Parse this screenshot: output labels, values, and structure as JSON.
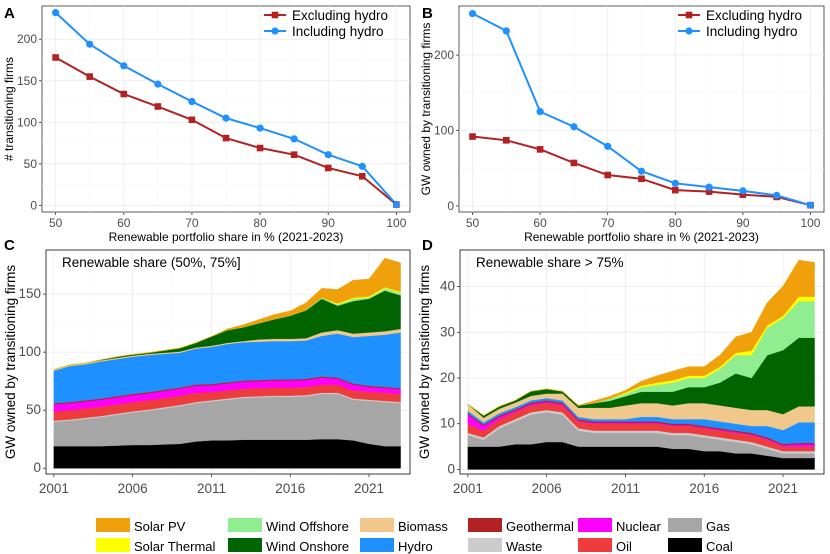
{
  "chart_data": [
    {
      "panel": "A",
      "type": "line",
      "xlabel": "Renewable portfolio share in % (2021-2023)",
      "ylabel": "# transitioning firms",
      "x": [
        50,
        55,
        60,
        65,
        70,
        75,
        80,
        85,
        90,
        95,
        100
      ],
      "xticks": [
        50,
        60,
        70,
        80,
        90,
        100
      ],
      "yticks": [
        0,
        50,
        100,
        150,
        200
      ],
      "xlim": [
        48,
        102
      ],
      "ylim": [
        -8,
        240
      ],
      "legend_position": "top-right",
      "series": [
        {
          "name": "Excluding hydro",
          "color": "#b22222",
          "marker": "square",
          "values": [
            178,
            155,
            134,
            119,
            103,
            81,
            69,
            61,
            45,
            35,
            1
          ]
        },
        {
          "name": "Including hydro",
          "color": "#1e90ff",
          "marker": "circle",
          "values": [
            232,
            194,
            168,
            146,
            125,
            105,
            93,
            80,
            61,
            47,
            1
          ]
        }
      ]
    },
    {
      "panel": "B",
      "type": "line",
      "xlabel": "Renewable portfolio share in % (2021-2023)",
      "ylabel": "GW owned by transitioning firms",
      "x": [
        50,
        55,
        60,
        65,
        70,
        75,
        80,
        85,
        90,
        95,
        100
      ],
      "xticks": [
        50,
        60,
        70,
        80,
        90,
        100
      ],
      "yticks": [
        0,
        100,
        200
      ],
      "xlim": [
        48,
        102
      ],
      "ylim": [
        -8,
        265
      ],
      "legend_position": "top-right",
      "series": [
        {
          "name": "Excluding hydro",
          "color": "#b22222",
          "marker": "square",
          "values": [
            92,
            87,
            75,
            57,
            41,
            36,
            21,
            19,
            15,
            12,
            1
          ]
        },
        {
          "name": "Including hydro",
          "color": "#1e90ff",
          "marker": "circle",
          "values": [
            255,
            232,
            125,
            105,
            79,
            46,
            30,
            25,
            20,
            14,
            1
          ]
        }
      ]
    },
    {
      "panel": "C",
      "type": "area",
      "stacked": true,
      "annotation": "Renewable share (50%, 75%]",
      "xlabel": "",
      "ylabel": "GW owned by transitioning firms",
      "x": [
        2001,
        2002,
        2003,
        2004,
        2005,
        2006,
        2007,
        2008,
        2009,
        2010,
        2011,
        2012,
        2013,
        2014,
        2015,
        2016,
        2017,
        2018,
        2019,
        2020,
        2021,
        2022,
        2023
      ],
      "xticks": [
        2001,
        2006,
        2011,
        2016,
        2021
      ],
      "yticks": [
        0,
        50,
        100,
        150
      ],
      "xlim": [
        2000.5,
        2023.6
      ],
      "ylim": [
        -5,
        188
      ],
      "series": [
        {
          "name": "Coal",
          "color": "#000000",
          "values": [
            19,
            19,
            19,
            19,
            19.5,
            20,
            20,
            20.5,
            21,
            23,
            24,
            24,
            24.5,
            24.5,
            24.5,
            24.5,
            24.5,
            25,
            25,
            24,
            21,
            19,
            19
          ]
        },
        {
          "name": "Gas",
          "color": "#a6a6a6",
          "values": [
            21,
            22,
            23.5,
            25,
            26.5,
            28,
            29.5,
            31,
            32.5,
            33,
            33.5,
            35,
            36,
            36.5,
            37,
            37,
            37.5,
            39,
            39,
            35,
            37,
            38,
            37
          ]
        },
        {
          "name": "Waste",
          "color": "#cccccc",
          "values": [
            1,
            1,
            1,
            1,
            1,
            1,
            1,
            1,
            1,
            1,
            1,
            1,
            1,
            1,
            1,
            1,
            1,
            1,
            1,
            1,
            1,
            1,
            1
          ]
        },
        {
          "name": "Oil",
          "color": "#ee3b3b",
          "values": [
            8,
            8,
            8,
            8,
            8,
            8,
            8,
            8,
            8,
            8,
            7,
            7,
            7,
            7,
            7,
            7,
            7,
            7,
            7,
            7,
            7,
            7,
            7
          ]
        },
        {
          "name": "Nuclear",
          "color": "#ff00ff",
          "values": [
            6,
            6,
            6,
            6,
            6,
            6,
            6,
            6,
            6,
            6,
            6,
            6,
            6,
            6,
            6,
            6,
            6,
            6,
            5,
            5,
            4,
            4,
            4
          ]
        },
        {
          "name": "Geothermal",
          "color": "#b22222",
          "values": [
            1,
            1,
            1,
            1,
            1,
            1,
            1,
            1,
            1,
            1,
            1,
            1,
            1,
            1,
            1,
            1,
            1,
            1,
            1,
            1,
            1,
            1,
            1
          ]
        },
        {
          "name": "Hydro",
          "color": "#1e90ff",
          "values": [
            28,
            31,
            31,
            32,
            32,
            32,
            32,
            31,
            30,
            31,
            32,
            33,
            33,
            33,
            33,
            33,
            33,
            35,
            38,
            40,
            43,
            45,
            48
          ]
        },
        {
          "name": "Biomass",
          "color": "#f0c88c",
          "values": [
            1,
            1,
            1,
            1,
            1,
            1,
            1,
            1,
            1,
            1,
            1,
            1,
            1,
            2,
            2,
            2,
            2,
            3,
            3,
            3,
            3,
            3,
            3
          ]
        },
        {
          "name": "Wind Onshore",
          "color": "#006400",
          "values": [
            0,
            0,
            0,
            0.5,
            1,
            1,
            1,
            2,
            3,
            4,
            8,
            11,
            12,
            14,
            17,
            20,
            24,
            29,
            21,
            28,
            29,
            35,
            29
          ]
        },
        {
          "name": "Wind Offshore",
          "color": "#90ee90",
          "values": [
            0,
            0,
            0,
            0,
            0,
            0,
            0,
            0,
            0,
            0,
            0,
            0,
            0,
            0,
            0,
            0,
            0.5,
            1,
            1,
            2,
            1,
            2,
            2
          ]
        },
        {
          "name": "Solar Thermal",
          "color": "#ffff00",
          "values": [
            0,
            0,
            0,
            0,
            0,
            0,
            0,
            0,
            0,
            0,
            0,
            0,
            0,
            0,
            0,
            0,
            0,
            0,
            1,
            1,
            1,
            1,
            1
          ]
        },
        {
          "name": "Solar PV",
          "color": "#f0a00a",
          "values": [
            0,
            0,
            0,
            0,
            0,
            0,
            0,
            0,
            0,
            0,
            0,
            1,
            2,
            3,
            4,
            4,
            6,
            8,
            12,
            15,
            15,
            25,
            25
          ]
        }
      ]
    },
    {
      "panel": "D",
      "type": "area",
      "stacked": true,
      "annotation": "Renewable share > 75%",
      "xlabel": "",
      "ylabel": "GW owned by transitioning firms",
      "x": [
        2001,
        2002,
        2003,
        2004,
        2005,
        2006,
        2007,
        2008,
        2009,
        2010,
        2011,
        2012,
        2013,
        2014,
        2015,
        2016,
        2017,
        2018,
        2019,
        2020,
        2021,
        2022,
        2023
      ],
      "xticks": [
        2001,
        2006,
        2011,
        2016,
        2021
      ],
      "yticks": [
        0,
        10,
        20,
        30,
        40
      ],
      "xlim": [
        2000.5,
        2023.6
      ],
      "ylim": [
        -1,
        48
      ],
      "series": [
        {
          "name": "Coal",
          "color": "#000000",
          "values": [
            5,
            5,
            5,
            5.5,
            5.5,
            6,
            6,
            5,
            5,
            5,
            5,
            5,
            5,
            4.5,
            4.5,
            4,
            4,
            3.5,
            3.5,
            3,
            2.5,
            2.5,
            2.5
          ]
        },
        {
          "name": "Gas",
          "color": "#a6a6a6",
          "values": [
            2.5,
            1.5,
            4,
            5,
            6.5,
            6.5,
            6,
            3.5,
            3,
            3,
            3,
            3,
            3,
            3,
            3,
            3,
            2.5,
            2.5,
            2,
            1.5,
            1,
            1,
            1
          ]
        },
        {
          "name": "Waste",
          "color": "#cccccc",
          "values": [
            0.5,
            0.5,
            0.5,
            0.5,
            0.5,
            0.5,
            0.5,
            0.5,
            0.5,
            0.5,
            0.5,
            0.5,
            0.5,
            0.5,
            0.5,
            0.5,
            0.5,
            0.5,
            0.5,
            0.5,
            0.5,
            0.5,
            0.5
          ]
        },
        {
          "name": "Oil",
          "color": "#ee3b3b",
          "values": [
            2,
            1.5,
            1.5,
            1.5,
            1.5,
            1.5,
            1.5,
            1.5,
            1.5,
            1.5,
            1.5,
            1.5,
            1.5,
            1.5,
            1.5,
            1.5,
            1.5,
            1.5,
            1.5,
            1.5,
            1,
            1,
            1
          ]
        },
        {
          "name": "Nuclear",
          "color": "#ff00ff",
          "values": [
            2,
            1,
            0.5,
            0.3,
            0.3,
            0.3,
            0.3,
            0.2,
            0.2,
            0.2,
            0.2,
            0.2,
            0.2,
            0.2,
            0.2,
            0.2,
            0.2,
            0.2,
            0.2,
            0.2,
            0.3,
            0.5,
            0.5
          ]
        },
        {
          "name": "Geothermal",
          "color": "#b22222",
          "values": [
            0.3,
            0.3,
            0.3,
            0.3,
            0.3,
            0.3,
            0.3,
            0.3,
            0.3,
            0.3,
            0.3,
            0.3,
            0.3,
            0.3,
            0.3,
            0.3,
            0.3,
            0.3,
            0.3,
            0.3,
            0.3,
            0.3,
            0.3
          ]
        },
        {
          "name": "Hydro",
          "color": "#1e90ff",
          "values": [
            0.5,
            0.5,
            0.5,
            0.5,
            0.5,
            0.5,
            0.5,
            0.5,
            0.5,
            0.5,
            0.5,
            1,
            1,
            1,
            1,
            1.5,
            1.5,
            1.5,
            1.5,
            2.5,
            3,
            4.5,
            4.5
          ]
        },
        {
          "name": "Biomass",
          "color": "#f0c88c",
          "values": [
            1.5,
            1,
            1,
            1,
            1,
            1,
            1.5,
            2,
            2.5,
            2.5,
            3,
            3,
            3,
            3,
            3.5,
            3.5,
            3.5,
            3.5,
            3.5,
            3.5,
            3.5,
            3.5,
            3.5
          ]
        },
        {
          "name": "Wind Onshore",
          "color": "#006400",
          "values": [
            0,
            0.5,
            0.5,
            0.5,
            1,
            1,
            0.5,
            0.5,
            1,
            1.5,
            2,
            2.5,
            2.5,
            3,
            3.5,
            3.5,
            5,
            7.5,
            7,
            12,
            14,
            15,
            15
          ]
        },
        {
          "name": "Wind Offshore",
          "color": "#90ee90",
          "values": [
            0,
            0,
            0,
            0,
            0,
            0,
            0,
            0,
            0,
            0.5,
            0.5,
            1,
            1.5,
            2,
            2,
            2,
            3,
            4,
            5,
            6,
            7,
            8,
            8
          ]
        },
        {
          "name": "Solar Thermal",
          "color": "#ffff00",
          "values": [
            0,
            0,
            0,
            0,
            0,
            0,
            0,
            0,
            0,
            0,
            0.3,
            0.3,
            0.5,
            0.5,
            0.5,
            0.5,
            0.5,
            0.5,
            1,
            0.5,
            0.5,
            1,
            1
          ]
        },
        {
          "name": "Solar PV",
          "color": "#f0a00a",
          "values": [
            0,
            0,
            0,
            0,
            0,
            0,
            0,
            0,
            0.5,
            0.5,
            0.5,
            1,
            1.5,
            2,
            2,
            2,
            2.5,
            3.5,
            4,
            5,
            6.5,
            8,
            7.5
          ]
        }
      ]
    }
  ],
  "legend": {
    "items": [
      {
        "label": "Solar PV",
        "color": "#f0a00a"
      },
      {
        "label": "Solar Thermal",
        "color": "#ffff00"
      },
      {
        "label": "Wind Offshore",
        "color": "#90ee90"
      },
      {
        "label": "Wind Onshore",
        "color": "#006400"
      },
      {
        "label": "Biomass",
        "color": "#f0c88c"
      },
      {
        "label": "Hydro",
        "color": "#1e90ff"
      },
      {
        "label": "Geothermal",
        "color": "#b22222"
      },
      {
        "label": "Waste",
        "color": "#cccccc"
      },
      {
        "label": "Nuclear",
        "color": "#ff00ff"
      },
      {
        "label": "Oil",
        "color": "#ee3b3b"
      },
      {
        "label": "Gas",
        "color": "#a6a6a6"
      },
      {
        "label": "Coal",
        "color": "#000000"
      }
    ]
  }
}
